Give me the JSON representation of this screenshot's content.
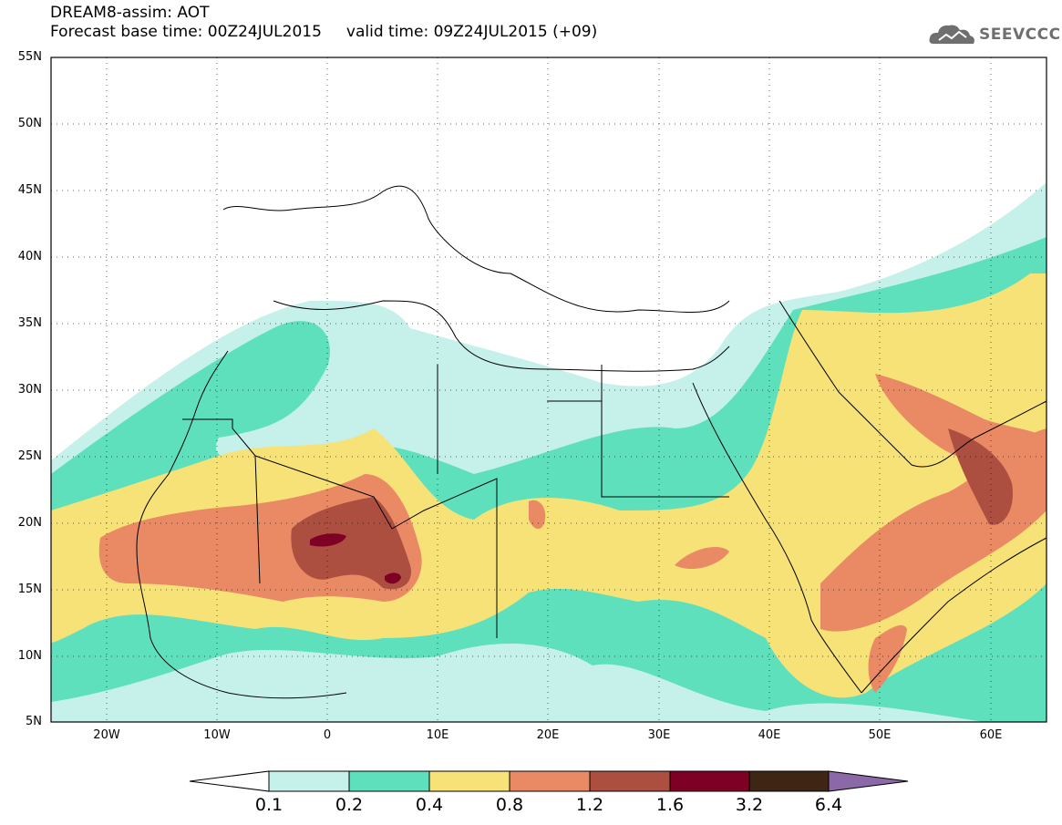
{
  "title": {
    "line1": "DREAM8-assim: AOT",
    "line2": "Forecast base time: 00Z24JUL2015     valid time: 09Z24JUL2015 (+09)"
  },
  "logo": {
    "text": "SEEVCCC",
    "icon": "cloud-icon"
  },
  "map": {
    "lat_range": [
      5,
      55
    ],
    "lon_range": [
      -25,
      65
    ],
    "lat_labels": [
      "55N",
      "50N",
      "45N",
      "40N",
      "35N",
      "30N",
      "25N",
      "20N",
      "15N",
      "10N",
      "5N"
    ],
    "lon_labels": [
      "20W",
      "10W",
      "0",
      "10E",
      "20E",
      "30E",
      "40E",
      "50E",
      "60E"
    ],
    "grid": "dotted"
  },
  "colorbar": {
    "labels": [
      "0.1",
      "0.2",
      "0.4",
      "0.8",
      "1.2",
      "1.6",
      "3.2",
      "6.4"
    ],
    "colors": [
      "#ffffff",
      "#c6f0ea",
      "#5ee0bd",
      "#f7e277",
      "#e98a64",
      "#ad4f40",
      "#7e0025",
      "#3f2614",
      "#8b68a8"
    ]
  }
}
